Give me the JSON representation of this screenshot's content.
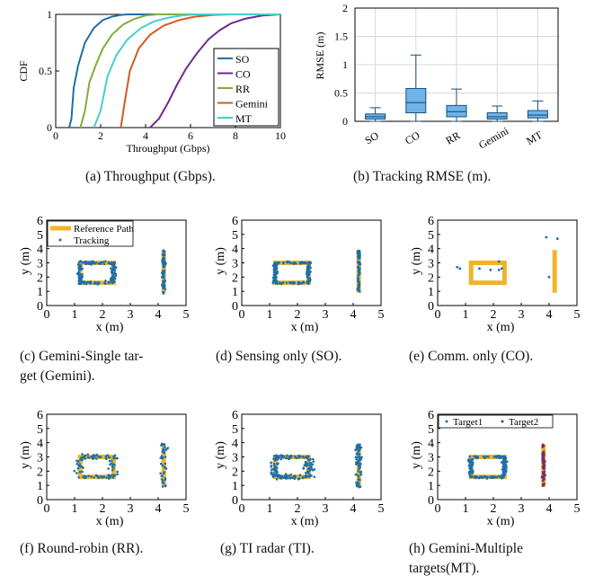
{
  "chart_data": [
    {
      "id": "a",
      "type": "line",
      "caption": "(a) Throughput (Gbps).",
      "xlabel": "Throughput (Gbps)",
      "ylabel": "CDF",
      "xlim": [
        0,
        10
      ],
      "ylim": [
        0,
        1
      ],
      "xticks": [
        "0",
        "2",
        "4",
        "6",
        "8",
        "10"
      ],
      "yticks": [
        "0",
        "0.5",
        "1"
      ],
      "legend_position": "bottom-right",
      "series": [
        {
          "name": "SO",
          "color": "#1f6fa5",
          "x": [
            0.6,
            0.7,
            0.8,
            1.0,
            1.3,
            1.7,
            2.1,
            2.5,
            2.9,
            3.2,
            10
          ],
          "y": [
            0,
            0.08,
            0.35,
            0.55,
            0.75,
            0.88,
            0.95,
            0.98,
            0.995,
            1,
            1
          ]
        },
        {
          "name": "CO",
          "color": "#6a2c8e",
          "x": [
            4.2,
            4.6,
            5.0,
            5.4,
            5.8,
            6.3,
            6.8,
            7.3,
            7.8,
            8.4,
            9.2,
            10
          ],
          "y": [
            0,
            0.08,
            0.22,
            0.38,
            0.52,
            0.66,
            0.78,
            0.86,
            0.92,
            0.96,
            0.99,
            1
          ]
        },
        {
          "name": "RR",
          "color": "#7fae3a",
          "x": [
            1.1,
            1.3,
            1.5,
            1.8,
            2.1,
            2.5,
            3.0,
            3.5,
            4.0,
            4.5,
            10
          ],
          "y": [
            0,
            0.15,
            0.4,
            0.56,
            0.7,
            0.82,
            0.91,
            0.96,
            0.99,
            1,
            1
          ]
        },
        {
          "name": "Gemini",
          "color": "#d35a1f",
          "x": [
            2.9,
            3.05,
            3.3,
            3.7,
            4.2,
            4.8,
            5.5,
            6.2,
            7.0,
            7.8,
            10
          ],
          "y": [
            0,
            0.2,
            0.5,
            0.7,
            0.82,
            0.9,
            0.95,
            0.98,
            0.995,
            1,
            1
          ]
        },
        {
          "name": "MT",
          "color": "#45d0c8",
          "x": [
            1.7,
            2.0,
            2.3,
            2.7,
            3.2,
            3.8,
            4.4,
            5.0,
            5.6,
            6.2,
            10
          ],
          "y": [
            0,
            0.15,
            0.45,
            0.64,
            0.78,
            0.88,
            0.94,
            0.97,
            0.99,
            1,
            1
          ]
        }
      ]
    },
    {
      "id": "b",
      "type": "box",
      "caption": "(b) Tracking RMSE (m).",
      "ylabel": "RMSE (m)",
      "ylim": [
        0,
        2
      ],
      "yticks": [
        "0",
        "0.5",
        "1",
        "1.5",
        "2"
      ],
      "categories": [
        "SO",
        "CO",
        "RR",
        "Gemini",
        "MT"
      ],
      "boxes": [
        {
          "min": 0.0,
          "q1": 0.04,
          "median": 0.08,
          "q3": 0.13,
          "max": 0.24
        },
        {
          "min": 0.0,
          "q1": 0.15,
          "median": 0.33,
          "q3": 0.58,
          "max": 1.17
        },
        {
          "min": 0.0,
          "q1": 0.08,
          "median": 0.17,
          "q3": 0.28,
          "max": 0.57
        },
        {
          "min": 0.0,
          "q1": 0.04,
          "median": 0.08,
          "q3": 0.15,
          "max": 0.27
        },
        {
          "min": 0.0,
          "q1": 0.06,
          "median": 0.11,
          "q3": 0.19,
          "max": 0.36
        }
      ],
      "grid": true,
      "color": "#6fb3e8"
    },
    {
      "id": "c",
      "type": "scatter",
      "caption": "(c) Gemini-Single tar-\nget (Gemini).",
      "xlabel": "x (m)",
      "ylabel": "y (m)",
      "xlim": [
        0,
        5
      ],
      "ylim": [
        0,
        6
      ],
      "legend": [
        "Reference Path",
        "Tracking"
      ],
      "density": 1.0,
      "spread": 0.15,
      "extra_points": []
    },
    {
      "id": "d",
      "type": "scatter",
      "caption": "(d) Sensing only (SO).",
      "xlabel": "x (m)",
      "ylabel": "y (m)",
      "xlim": [
        0,
        5
      ],
      "ylim": [
        0,
        6
      ],
      "density": 1.0,
      "spread": 0.13,
      "extra_points": []
    },
    {
      "id": "e",
      "type": "scatter",
      "caption": "(e) Comm. only (CO).",
      "xlabel": "x (m)",
      "ylabel": "y (m)",
      "xlim": [
        0,
        5
      ],
      "ylim": [
        0,
        6
      ],
      "density": 0.0,
      "spread": 0.0,
      "extra_points": [
        [
          0.7,
          2.7
        ],
        [
          0.8,
          2.6
        ],
        [
          1.5,
          2.6
        ],
        [
          1.9,
          2.5
        ],
        [
          2.3,
          2.6
        ],
        [
          2.2,
          3.1
        ],
        [
          2.2,
          2.5
        ],
        [
          3.9,
          4.8
        ],
        [
          4.3,
          4.7
        ],
        [
          4.0,
          2.0
        ]
      ]
    },
    {
      "id": "f",
      "type": "scatter",
      "caption": "(f) Round-robin (RR).",
      "xlabel": "x (m)",
      "ylabel": "y (m)",
      "xlim": [
        0,
        5
      ],
      "ylim": [
        0,
        6
      ],
      "density": 0.55,
      "spread": 0.3,
      "extra_points": []
    },
    {
      "id": "g",
      "type": "scatter",
      "caption": "(g) TI radar (TI).",
      "xlabel": "x (m)",
      "ylabel": "y (m)",
      "xlim": [
        0,
        5
      ],
      "ylim": [
        0,
        6
      ],
      "density": 1.0,
      "spread": 0.28,
      "extra_points": []
    },
    {
      "id": "h",
      "type": "scatter",
      "caption": "(h) Gemini-Multiple\ntargets(MT).",
      "xlabel": "x (m)",
      "ylabel": "y (m)",
      "xlim": [
        0,
        5
      ],
      "ylim": [
        0,
        6
      ],
      "legend": [
        "Target1",
        "Target2"
      ],
      "density": 1.0,
      "spread": 0.13,
      "extra_points": []
    }
  ],
  "reference_path": {
    "rect": [
      1.2,
      1.6,
      2.4,
      3.0
    ],
    "line": [
      4.2,
      0.9,
      4.2,
      3.9
    ]
  },
  "colors": {
    "path": "#f0b429",
    "track": "#1a6fb0",
    "target2": "#7b2a6e"
  }
}
